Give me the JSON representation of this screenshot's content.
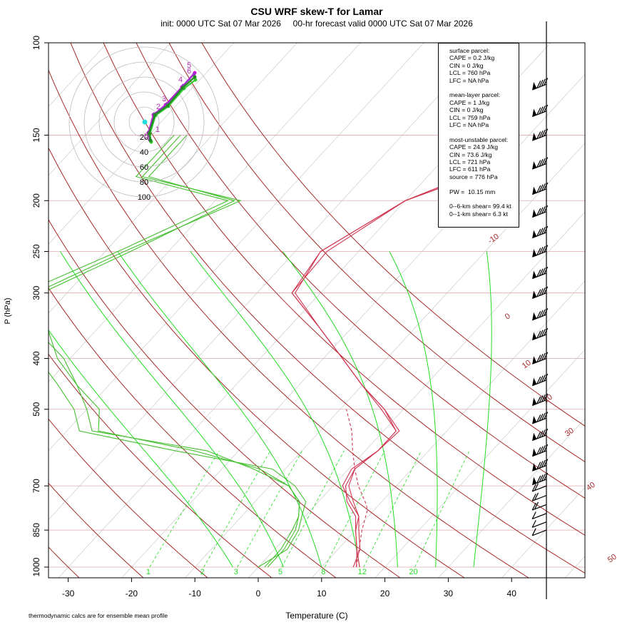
{
  "title": "CSU WRF skew-T for Lamar",
  "subtitle": "init: 0000 UTC Sat 07 Mar 2026     00-hr forecast valid 0000 UTC Sat 07 Mar 2026",
  "footnote": "thermodynamic calcs are for ensemble mean profile",
  "info": {
    "surface": [
      "surface parcel:",
      "CAPE = 0.2 J/kg",
      "CIN = 0 J/kg",
      "LCL = 760 hPa",
      "LFC = NA hPa"
    ],
    "mixed": [
      "mean-layer parcel:",
      "CAPE = 1 J/kg",
      "CIN = 0 J/kg",
      "LCL = 759 hPa",
      "LFC = NA hPa"
    ],
    "mu": [
      "most-unstable parcel:",
      "CAPE = 24.9 J/kg",
      "CIN = 73.6 J/kg",
      "LCL = 721 hPa",
      "LFC = 611 hPa",
      "source = 776 hPa"
    ],
    "pw": "PW =  10.15 mm",
    "shear6": "0--6-km shear= 99.4 kt",
    "shear1": "0--1-km shear= 6.3 kt"
  },
  "colors": {
    "temperature": "#d03550",
    "dewpoint": "#45c030",
    "dry_adiabat": "#a52a2a",
    "moist_adiabat": "#22dd22",
    "mixing_ratio": "#22dd22",
    "isobar": "#ddaaaa",
    "isotherm": "#cccccc"
  },
  "chart_data": {
    "type": "skew-T log-P diagram",
    "xlabel": "Temperature (C)",
    "ylabel": "P (hPa)",
    "x_ticks": [
      -30,
      -20,
      -10,
      0,
      10,
      20,
      30,
      40
    ],
    "y_ticks": [
      100,
      150,
      200,
      250,
      300,
      400,
      500,
      700,
      850,
      1000
    ],
    "xlim": [
      -33,
      45
    ],
    "ylim": [
      1050,
      100
    ],
    "dry_adiabat_labels": [
      -10,
      0,
      10,
      20,
      30,
      40,
      50
    ],
    "mixing_ratio_labels": [
      1,
      2,
      3,
      5,
      8,
      12,
      20
    ],
    "temperature_members": [
      [
        [
          1000,
          15.5
        ],
        [
          925,
          13
        ],
        [
          850,
          10
        ],
        [
          800,
          8
        ],
        [
          750,
          4.5
        ],
        [
          700,
          2
        ],
        [
          650,
          1
        ],
        [
          600,
          2
        ],
        [
          550,
          2
        ],
        [
          500,
          -3
        ],
        [
          450,
          -10
        ],
        [
          400,
          -17
        ],
        [
          350,
          -25
        ],
        [
          300,
          -34.5
        ],
        [
          250,
          -35
        ],
        [
          200,
          -30
        ],
        [
          180,
          -24
        ],
        [
          160,
          -30
        ],
        [
          130,
          -37
        ],
        [
          110,
          -41
        ]
      ],
      [
        [
          1000,
          15
        ],
        [
          925,
          13.5
        ],
        [
          850,
          10.5
        ],
        [
          800,
          8.5
        ],
        [
          750,
          5
        ],
        [
          700,
          1.5
        ],
        [
          650,
          0.5
        ],
        [
          600,
          2
        ],
        [
          550,
          2
        ],
        [
          500,
          -3.5
        ],
        [
          450,
          -10
        ],
        [
          400,
          -17
        ],
        [
          350,
          -25
        ],
        [
          300,
          -34.5
        ],
        [
          250,
          -36
        ],
        [
          200,
          -30
        ],
        [
          180,
          -24
        ],
        [
          160,
          -30
        ],
        [
          130,
          -38
        ],
        [
          110,
          -42
        ]
      ],
      [
        [
          1000,
          16
        ],
        [
          925,
          13
        ],
        [
          850,
          10
        ],
        [
          800,
          8.5
        ],
        [
          750,
          5.5
        ],
        [
          700,
          2.5
        ],
        [
          650,
          1
        ],
        [
          600,
          2
        ],
        [
          550,
          2.5
        ],
        [
          500,
          -3
        ],
        [
          450,
          -10
        ],
        [
          400,
          -17
        ],
        [
          350,
          -25
        ],
        [
          300,
          -34
        ],
        [
          250,
          -36
        ],
        [
          200,
          -30
        ],
        [
          180,
          -23
        ],
        [
          160,
          -30
        ],
        [
          130,
          -36
        ],
        [
          110,
          -40
        ]
      ]
    ],
    "dewpoint_members": [
      [
        [
          1000,
          1
        ],
        [
          925,
          1
        ],
        [
          850,
          0
        ],
        [
          800,
          -1
        ],
        [
          750,
          -3
        ],
        [
          700,
          -7
        ],
        [
          650,
          -14
        ],
        [
          600,
          -27
        ],
        [
          550,
          -45
        ],
        [
          500,
          -48
        ],
        [
          450,
          -55
        ],
        [
          400,
          -62
        ],
        [
          350,
          -68
        ],
        [
          300,
          -75
        ],
        [
          250,
          -67
        ],
        [
          200,
          -56
        ],
        [
          180,
          -75
        ],
        [
          150,
          -75
        ]
      ],
      [
        [
          1000,
          0
        ],
        [
          925,
          2
        ],
        [
          850,
          1
        ],
        [
          800,
          -0.5
        ],
        [
          750,
          -2
        ],
        [
          700,
          -6
        ],
        [
          650,
          -12
        ],
        [
          600,
          -30
        ],
        [
          550,
          -48
        ],
        [
          500,
          -52
        ],
        [
          450,
          -58
        ],
        [
          400,
          -65
        ],
        [
          350,
          -72
        ],
        [
          300,
          -77
        ],
        [
          250,
          -68
        ],
        [
          200,
          -58
        ],
        [
          180,
          -76
        ],
        [
          150,
          -76
        ]
      ],
      [
        [
          1000,
          1.5
        ],
        [
          925,
          1.5
        ],
        [
          850,
          0.5
        ],
        [
          800,
          -1
        ],
        [
          750,
          -3
        ],
        [
          700,
          -7
        ],
        [
          650,
          -15
        ],
        [
          600,
          -25
        ],
        [
          550,
          -46
        ],
        [
          500,
          -50
        ],
        [
          450,
          -55
        ],
        [
          400,
          -61
        ],
        [
          350,
          -70
        ],
        [
          300,
          -74
        ],
        [
          250,
          -66
        ],
        [
          200,
          -57
        ],
        [
          180,
          -74
        ],
        [
          150,
          -74
        ]
      ]
    ],
    "parcel_path": [
      [
        1000,
        15.5
      ],
      [
        850,
        11
      ],
      [
        780,
        9
      ],
      [
        760,
        8
      ],
      [
        700,
        4
      ],
      [
        650,
        1
      ],
      [
        600,
        -2
      ],
      [
        550,
        -5
      ],
      [
        500,
        -9
      ]
    ],
    "hodograph": {
      "ring_labels": [
        20,
        40,
        60,
        80,
        100
      ],
      "height_labels_km": [
        "0",
        "1",
        "2",
        "3",
        "4",
        "5",
        "6"
      ]
    }
  }
}
